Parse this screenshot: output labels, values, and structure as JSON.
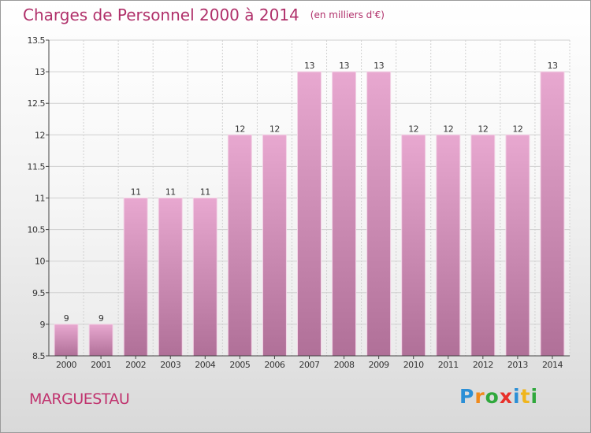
{
  "header": {
    "title": "Charges de Personnel 2000 à 2014",
    "subtitle": "(en milliers d'€)"
  },
  "footer": {
    "commune": "MARGUESTAU",
    "logo_text": "Proxiti",
    "logo_letters": [
      {
        "ch": "P",
        "color": "#2b8fd6"
      },
      {
        "ch": "r",
        "color": "#f08a1c"
      },
      {
        "ch": "o",
        "color": "#2fa83c"
      },
      {
        "ch": "x",
        "color": "#e8302a"
      },
      {
        "ch": "i",
        "color": "#2b8fd6"
      },
      {
        "ch": "t",
        "color": "#f0b51c"
      },
      {
        "ch": "i",
        "color": "#2fa83c"
      }
    ]
  },
  "colors": {
    "bar_top": "#e8a8d0",
    "bar_bottom": "#b07098",
    "grid": "#d0d0d0",
    "axis_text": "#333333"
  },
  "chart_data": {
    "type": "bar",
    "categories": [
      "2000",
      "2001",
      "2002",
      "2003",
      "2004",
      "2005",
      "2006",
      "2007",
      "2008",
      "2009",
      "2010",
      "2011",
      "2012",
      "2013",
      "2014"
    ],
    "values": [
      9,
      9,
      11,
      11,
      11,
      12,
      12,
      13,
      13,
      13,
      12,
      12,
      12,
      12,
      13
    ],
    "data_labels": [
      "9",
      "9",
      "11",
      "11",
      "11",
      "12",
      "12",
      "13",
      "13",
      "13",
      "12",
      "12",
      "12",
      "12",
      "13"
    ],
    "ylim": [
      8.5,
      13.5
    ],
    "yticks": [
      8.5,
      9,
      9.5,
      10,
      10.5,
      11,
      11.5,
      12,
      12.5,
      13,
      13.5
    ],
    "ytick_labels": [
      "8.5",
      "9",
      "9.5",
      "10",
      "10.5",
      "11",
      "11.5",
      "12",
      "12.5",
      "13",
      "13.5"
    ],
    "grid": true,
    "title": "Charges de Personnel 2000 à 2014",
    "xlabel": "",
    "ylabel": ""
  }
}
